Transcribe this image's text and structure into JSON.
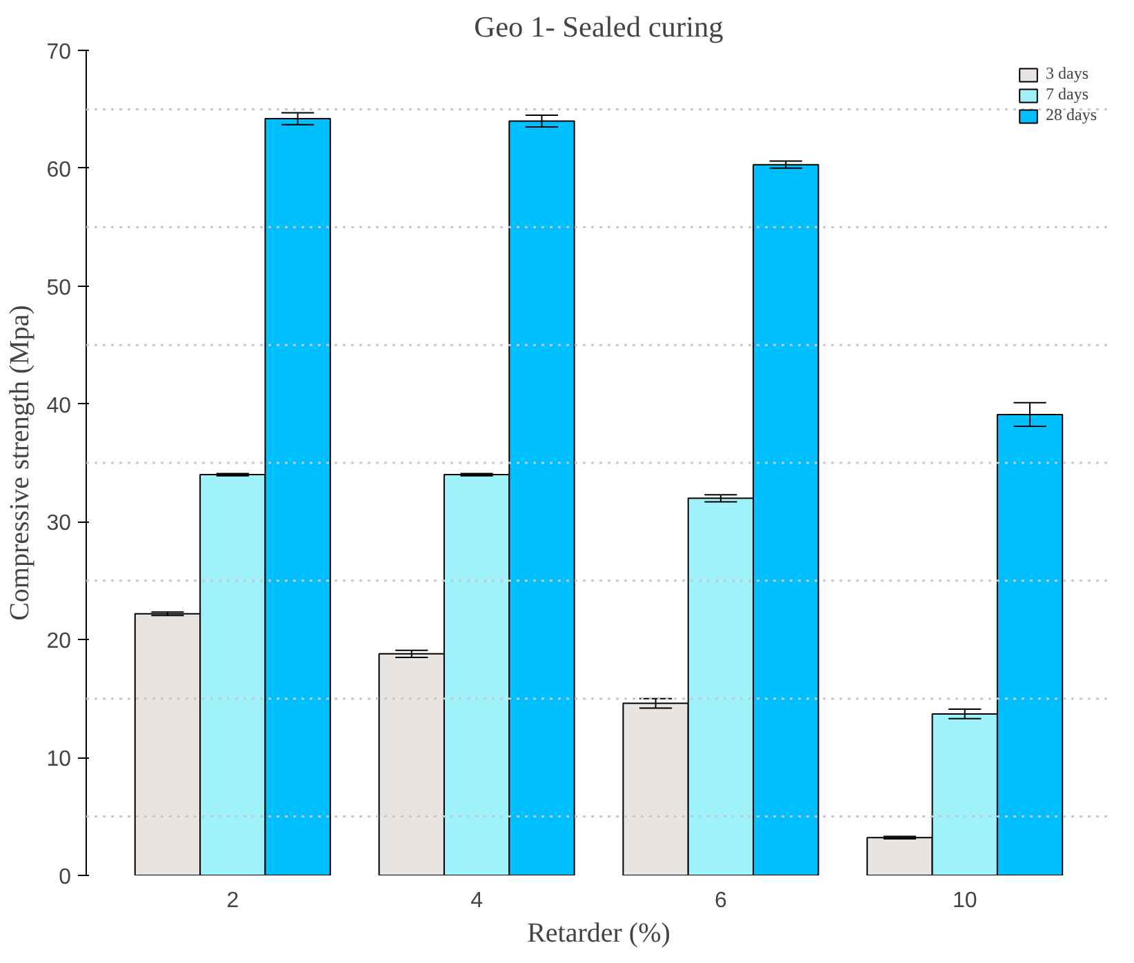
{
  "chart_data": {
    "type": "bar",
    "title": "Geo 1- Sealed curing",
    "xlabel": "Retarder (%)",
    "ylabel": "Compressive strength (Mpa)",
    "categories": [
      "2",
      "4",
      "6",
      "10"
    ],
    "series": [
      {
        "name": "3 days",
        "color": "#e8e4e2",
        "values": [
          22.2,
          18.8,
          14.6,
          3.2
        ],
        "errors": [
          0.15,
          0.3,
          0.4,
          0.1
        ]
      },
      {
        "name": "7 days",
        "color": "#a0f2fa",
        "values": [
          34.0,
          34.0,
          32.0,
          13.7
        ],
        "errors": [
          0.1,
          0.1,
          0.3,
          0.4
        ]
      },
      {
        "name": "28 days",
        "color": "#00bfff",
        "values": [
          64.2,
          64.0,
          60.3,
          39.1
        ],
        "errors": [
          0.5,
          0.5,
          0.3,
          1.0
        ]
      }
    ],
    "ylim": [
      0,
      70
    ],
    "yticks": [
      0,
      10,
      20,
      30,
      40,
      50,
      60,
      70
    ],
    "grid": false,
    "legend": "top right",
    "ref_lines": [
      {
        "axis": "y",
        "value": 5,
        "line_style": "dotted",
        "color": "#c8c8c8"
      },
      {
        "axis": "y",
        "value": 15,
        "line_style": "dotted",
        "color": "#c8c8c8"
      },
      {
        "axis": "y",
        "value": 25,
        "line_style": "dotted",
        "color": "#c8c8c8"
      },
      {
        "axis": "y",
        "value": 35,
        "line_style": "dotted",
        "color": "#c8c8c8"
      },
      {
        "axis": "y",
        "value": 45,
        "line_style": "dotted",
        "color": "#c8c8c8"
      },
      {
        "axis": "y",
        "value": 55,
        "line_style": "dotted",
        "color": "#c8c8c8"
      },
      {
        "axis": "y",
        "value": 65,
        "line_style": "dotted",
        "color": "#c8c8c8"
      }
    ]
  }
}
